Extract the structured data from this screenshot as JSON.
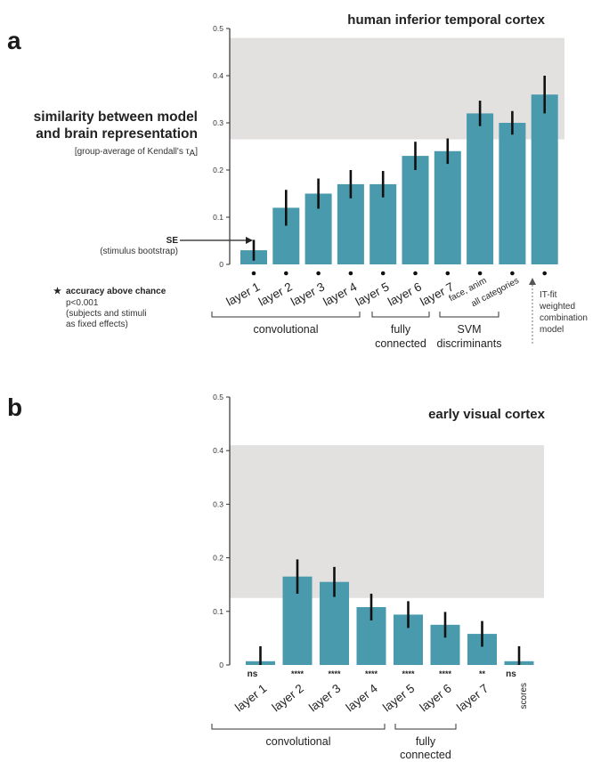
{
  "colors": {
    "bar": "#4a9aae",
    "ceiling": "#e2e1e0",
    "error": "#111111",
    "axis": "#333333"
  },
  "side_title": {
    "line1": "similarity between model",
    "line2": "and brain representation"
  },
  "side_subtitle": "[group-average of Kendall's τ",
  "side_subtitle_sub": "A",
  "side_subtitle_end": "]",
  "se_note": {
    "label": "SE",
    "detail": "(stimulus bootstrap)"
  },
  "accuracy_note": {
    "marker": "★",
    "title": "accuracy above chance",
    "lines": [
      "p<0.001",
      "(subjects and stimuli",
      "as fixed effects)"
    ]
  },
  "itfit_note": [
    "IT-fit",
    "weighted",
    "combination",
    "model"
  ],
  "chart_data": [
    {
      "panel": "a",
      "type": "bar",
      "title": "human inferior temporal cortex",
      "ylim": [
        0,
        0.5
      ],
      "yticks": [
        "0",
        "0.1",
        "0.2",
        "0.3",
        "0.4",
        "0.5"
      ],
      "ceiling": [
        0.265,
        0.48
      ],
      "categories": [
        "layer 1",
        "layer 2",
        "layer 3",
        "layer 4",
        "layer 5",
        "layer 6",
        "layer 7",
        "face, anim",
        "all categories",
        ""
      ],
      "values": [
        0.03,
        0.12,
        0.15,
        0.17,
        0.17,
        0.23,
        0.24,
        0.32,
        0.3,
        0.36
      ],
      "errors": [
        0.022,
        0.038,
        0.032,
        0.03,
        0.028,
        0.03,
        0.027,
        0.027,
        0.025,
        0.04
      ],
      "marks": [
        "•",
        "•",
        "•",
        "•",
        "•",
        "•",
        "•",
        "•",
        "•",
        "•"
      ],
      "groups": [
        "convolutional",
        "fully",
        "connected",
        "SVM",
        "discriminants"
      ]
    },
    {
      "panel": "b",
      "type": "bar",
      "title": "early visual cortex",
      "ylim": [
        0,
        0.5
      ],
      "yticks": [
        "0",
        "0.1",
        "0.2",
        "0.3",
        "0.4",
        "0.5"
      ],
      "ceiling": [
        0.125,
        0.41
      ],
      "categories": [
        "layer 1",
        "layer 2",
        "layer 3",
        "layer 4",
        "layer 5",
        "layer 6",
        "layer 7",
        "scores"
      ],
      "values": [
        0.007,
        0.165,
        0.155,
        0.108,
        0.094,
        0.075,
        0.058,
        0.007
      ],
      "errors": [
        0.028,
        0.032,
        0.028,
        0.025,
        0.025,
        0.024,
        0.024,
        0.028
      ],
      "marks": [
        "ns",
        "****",
        "****",
        "****",
        "****",
        "****",
        "**",
        "ns"
      ],
      "groups": [
        "convolutional",
        "fully",
        "connected"
      ]
    }
  ]
}
